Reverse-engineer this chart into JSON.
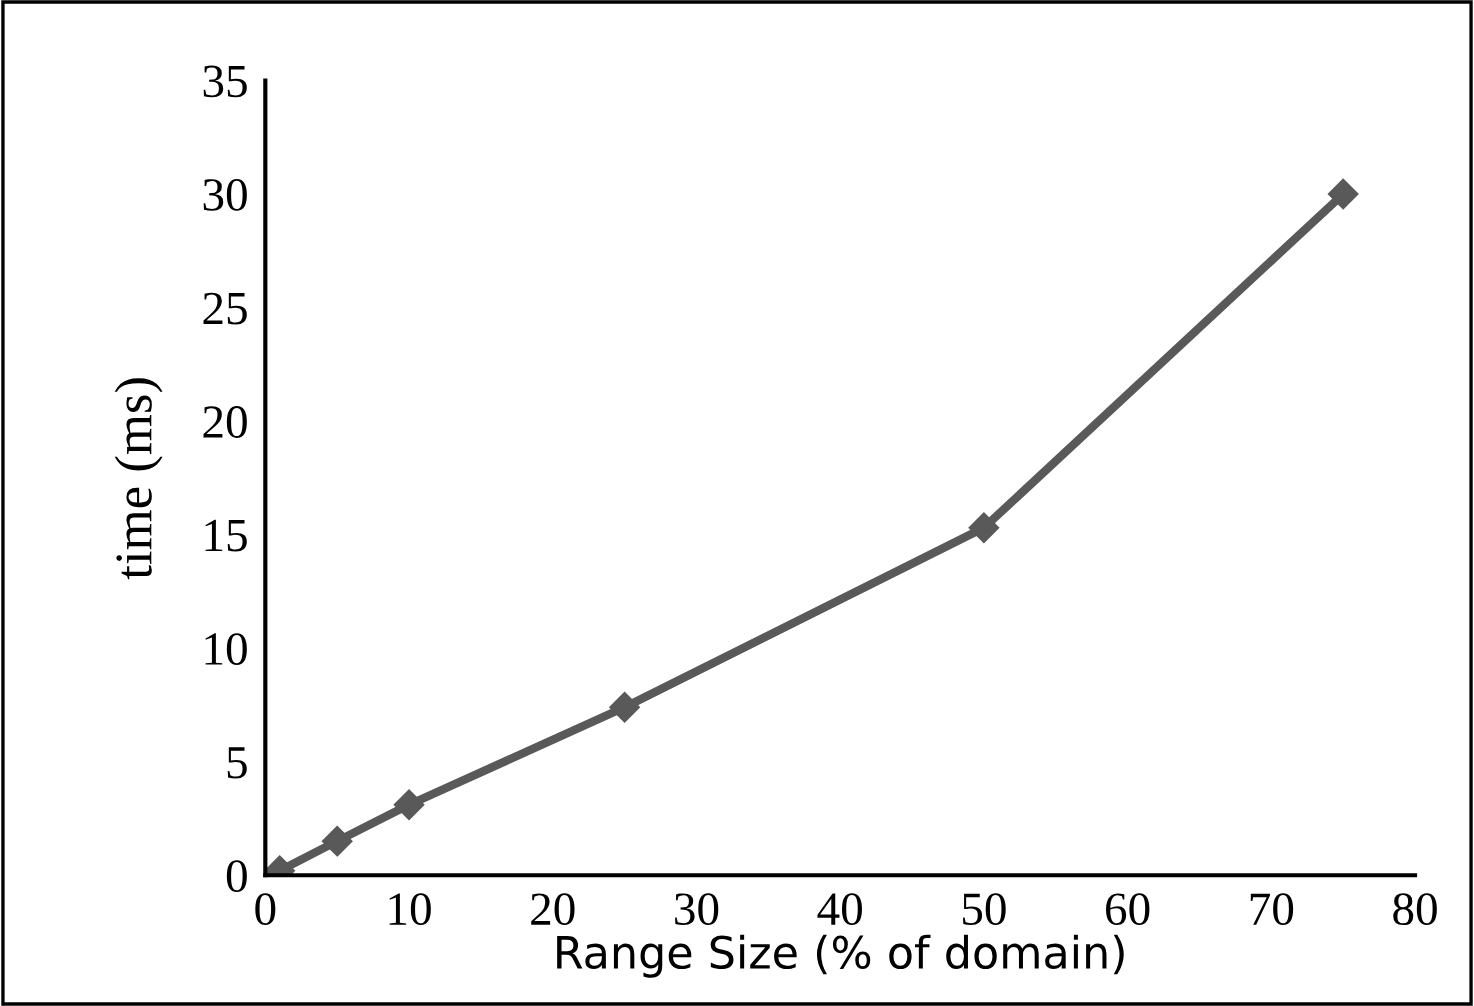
{
  "chart_data": {
    "type": "line",
    "xlabel": "Range Size (% of domain)",
    "ylabel": "time (ms)",
    "x": [
      1,
      5,
      10,
      25,
      50,
      75
    ],
    "series": [
      {
        "color": "#595959",
        "values": [
          0.2,
          1.5,
          3.1,
          7.4,
          15.3,
          30.0
        ]
      }
    ],
    "xlim": [
      0,
      80
    ],
    "xticks": [
      0,
      10,
      20,
      30,
      40,
      50,
      60,
      70,
      80
    ],
    "ylim": [
      0,
      35
    ],
    "yticks": [
      0,
      5,
      10,
      15,
      20,
      25,
      30,
      35
    ],
    "grid": false,
    "legend": false,
    "marker": "diamond",
    "line_style": "solid"
  }
}
